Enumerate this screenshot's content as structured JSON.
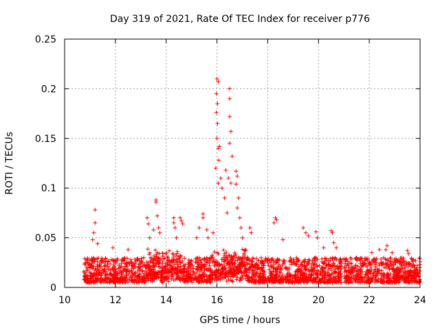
{
  "chart_data": {
    "type": "scatter",
    "title": "Day 319 of 2021, Rate Of TEC Index for receiver p776",
    "xlabel": "GPS time / hours",
    "ylabel": "ROTI / TECUs",
    "xlim": [
      10,
      24
    ],
    "ylim": [
      0,
      0.25
    ],
    "xticks": [
      10,
      12,
      14,
      16,
      18,
      20,
      22,
      24
    ],
    "xtick_labels": [
      "10",
      "12",
      "14",
      "16",
      "18",
      "20",
      "22",
      "24"
    ],
    "yticks": [
      0,
      0.05,
      0.1,
      0.15,
      0.2,
      0.25
    ],
    "ytick_labels": [
      "0",
      "0.05",
      "0.1",
      "0.15",
      "0.2",
      "0.25"
    ],
    "grid": true,
    "marker": "+",
    "color": "#ff0000",
    "data_gaps_hours": [
      [
        20.9,
        21.0
      ]
    ],
    "baseline_range": [
      0.005,
      0.03
    ],
    "series": [
      {
        "name": "ROTI",
        "notable_points": [
          {
            "x": 11.2,
            "y": 0.078
          },
          {
            "x": 11.2,
            "y": 0.065
          },
          {
            "x": 11.15,
            "y": 0.055
          },
          {
            "x": 11.1,
            "y": 0.048
          },
          {
            "x": 11.3,
            "y": 0.044
          },
          {
            "x": 11.9,
            "y": 0.04
          },
          {
            "x": 12.5,
            "y": 0.038
          },
          {
            "x": 13.25,
            "y": 0.07
          },
          {
            "x": 13.3,
            "y": 0.064
          },
          {
            "x": 13.35,
            "y": 0.05
          },
          {
            "x": 13.5,
            "y": 0.058
          },
          {
            "x": 13.6,
            "y": 0.088
          },
          {
            "x": 13.6,
            "y": 0.086
          },
          {
            "x": 13.65,
            "y": 0.072
          },
          {
            "x": 13.7,
            "y": 0.06
          },
          {
            "x": 13.75,
            "y": 0.055
          },
          {
            "x": 14.3,
            "y": 0.07
          },
          {
            "x": 14.3,
            "y": 0.065
          },
          {
            "x": 14.35,
            "y": 0.06
          },
          {
            "x": 14.4,
            "y": 0.05
          },
          {
            "x": 14.55,
            "y": 0.07
          },
          {
            "x": 14.6,
            "y": 0.067
          },
          {
            "x": 14.65,
            "y": 0.064
          },
          {
            "x": 15.2,
            "y": 0.05
          },
          {
            "x": 15.3,
            "y": 0.06
          },
          {
            "x": 15.45,
            "y": 0.074
          },
          {
            "x": 15.45,
            "y": 0.07
          },
          {
            "x": 15.6,
            "y": 0.058
          },
          {
            "x": 15.65,
            "y": 0.05
          },
          {
            "x": 15.85,
            "y": 0.055
          },
          {
            "x": 16.0,
            "y": 0.21
          },
          {
            "x": 16.05,
            "y": 0.207
          },
          {
            "x": 15.98,
            "y": 0.195
          },
          {
            "x": 16.02,
            "y": 0.185
          },
          {
            "x": 15.98,
            "y": 0.176
          },
          {
            "x": 16.02,
            "y": 0.165
          },
          {
            "x": 16.0,
            "y": 0.15
          },
          {
            "x": 16.05,
            "y": 0.14
          },
          {
            "x": 16.1,
            "y": 0.142
          },
          {
            "x": 16.07,
            "y": 0.128
          },
          {
            "x": 15.95,
            "y": 0.12
          },
          {
            "x": 16.15,
            "y": 0.11
          },
          {
            "x": 16.2,
            "y": 0.1
          },
          {
            "x": 16.05,
            "y": 0.105
          },
          {
            "x": 16.3,
            "y": 0.09
          },
          {
            "x": 16.4,
            "y": 0.075
          },
          {
            "x": 16.5,
            "y": 0.2
          },
          {
            "x": 16.5,
            "y": 0.19
          },
          {
            "x": 16.5,
            "y": 0.172
          },
          {
            "x": 16.55,
            "y": 0.157
          },
          {
            "x": 16.5,
            "y": 0.145
          },
          {
            "x": 16.6,
            "y": 0.132
          },
          {
            "x": 16.35,
            "y": 0.118
          },
          {
            "x": 16.45,
            "y": 0.11
          },
          {
            "x": 16.55,
            "y": 0.105
          },
          {
            "x": 16.75,
            "y": 0.117
          },
          {
            "x": 16.8,
            "y": 0.112
          },
          {
            "x": 16.75,
            "y": 0.104
          },
          {
            "x": 16.85,
            "y": 0.09
          },
          {
            "x": 16.8,
            "y": 0.08
          },
          {
            "x": 16.9,
            "y": 0.07
          },
          {
            "x": 16.95,
            "y": 0.06
          },
          {
            "x": 17.0,
            "y": 0.05
          },
          {
            "x": 17.3,
            "y": 0.06
          },
          {
            "x": 17.35,
            "y": 0.055
          },
          {
            "x": 18.3,
            "y": 0.07
          },
          {
            "x": 18.35,
            "y": 0.068
          },
          {
            "x": 18.25,
            "y": 0.065
          },
          {
            "x": 18.6,
            "y": 0.048
          },
          {
            "x": 19.4,
            "y": 0.06
          },
          {
            "x": 19.5,
            "y": 0.055
          },
          {
            "x": 19.6,
            "y": 0.052
          },
          {
            "x": 19.9,
            "y": 0.056
          },
          {
            "x": 19.95,
            "y": 0.05
          },
          {
            "x": 20.2,
            "y": 0.04
          },
          {
            "x": 20.5,
            "y": 0.057
          },
          {
            "x": 20.55,
            "y": 0.055
          },
          {
            "x": 20.6,
            "y": 0.045
          },
          {
            "x": 20.7,
            "y": 0.04
          },
          {
            "x": 21.5,
            "y": 0.03
          },
          {
            "x": 22.1,
            "y": 0.035
          },
          {
            "x": 22.4,
            "y": 0.038
          },
          {
            "x": 22.7,
            "y": 0.042
          },
          {
            "x": 22.65,
            "y": 0.038
          },
          {
            "x": 22.9,
            "y": 0.035
          },
          {
            "x": 23.5,
            "y": 0.037
          },
          {
            "x": 23.55,
            "y": 0.034
          }
        ]
      }
    ]
  }
}
